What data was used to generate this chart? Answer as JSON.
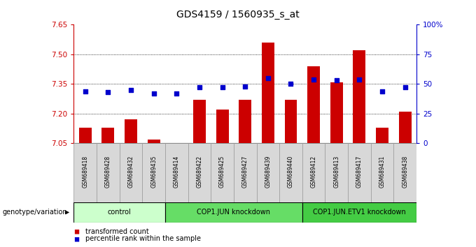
{
  "title": "GDS4159 / 1560935_s_at",
  "samples": [
    "GSM689418",
    "GSM689428",
    "GSM689432",
    "GSM689435",
    "GSM689414",
    "GSM689422",
    "GSM689425",
    "GSM689427",
    "GSM689439",
    "GSM689440",
    "GSM689412",
    "GSM689413",
    "GSM689417",
    "GSM689431",
    "GSM689438"
  ],
  "bar_values": [
    7.13,
    7.13,
    7.17,
    7.07,
    7.05,
    7.27,
    7.22,
    7.27,
    7.56,
    7.27,
    7.44,
    7.36,
    7.52,
    7.13,
    7.21
  ],
  "dot_values": [
    44,
    43,
    45,
    42,
    42,
    47,
    47,
    48,
    55,
    50,
    54,
    53,
    54,
    44,
    47
  ],
  "ylim_left": [
    7.05,
    7.65
  ],
  "ylim_right": [
    0,
    100
  ],
  "yticks_left": [
    7.05,
    7.2,
    7.35,
    7.5,
    7.65
  ],
  "yticks_right": [
    0,
    25,
    50,
    75,
    100
  ],
  "ytick_labels_right": [
    "0",
    "25",
    "50",
    "75",
    "100%"
  ],
  "gridlines": [
    7.2,
    7.35,
    7.5
  ],
  "groups": [
    {
      "label": "control",
      "start": 0,
      "end": 4,
      "color": "#ccffcc"
    },
    {
      "label": "COP1.JUN knockdown",
      "start": 4,
      "end": 10,
      "color": "#66dd66"
    },
    {
      "label": "COP1.JUN.ETV1 knockdown",
      "start": 10,
      "end": 15,
      "color": "#44cc44"
    }
  ],
  "bar_color": "#cc0000",
  "dot_color": "#0000cc",
  "bar_bottom": 7.05,
  "bg_color": "#ffffff",
  "legend_line1": "transformed count",
  "legend_line2": "percentile rank within the sample",
  "genotype_label": "genotype/variation"
}
